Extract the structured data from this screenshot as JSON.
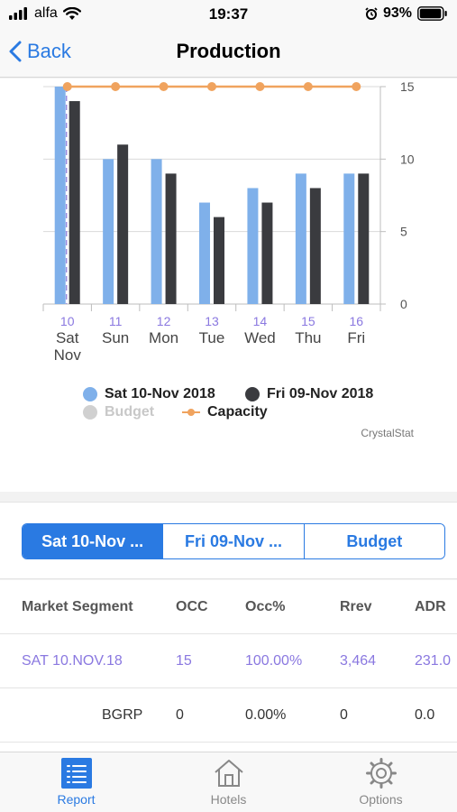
{
  "status": {
    "carrier": "alfa",
    "time": "19:37",
    "battery": "93%"
  },
  "nav": {
    "back_label": "Back",
    "title": "Production"
  },
  "chart_data": {
    "type": "bar",
    "categories": [
      "10",
      "11",
      "12",
      "13",
      "14",
      "15",
      "16"
    ],
    "category_days": [
      "Sat",
      "Sun",
      "Mon",
      "Tue",
      "Wed",
      "Thu",
      "Fri"
    ],
    "category_extra": [
      "Nov",
      "",
      "",
      "",
      "",
      "",
      ""
    ],
    "series": [
      {
        "name": "Sat 10-Nov 2018",
        "values": [
          15,
          10,
          10,
          7,
          8,
          9,
          9
        ],
        "color": "#7fb0ea"
      },
      {
        "name": "Fri 09-Nov 2018",
        "values": [
          14,
          11,
          9,
          6,
          7,
          8,
          9
        ],
        "color": "#3a3b3f"
      }
    ],
    "lines": [
      {
        "name": "Capacity",
        "values": [
          15,
          15,
          15,
          15,
          15,
          15,
          15
        ],
        "color": "#f0a35e"
      }
    ],
    "hidden_series": [
      {
        "name": "Budget",
        "color": "#c8c8c8"
      }
    ],
    "ylim": [
      0,
      15
    ],
    "yticks": [
      0,
      5,
      10,
      15
    ],
    "grid": true,
    "legend_position": "bottom"
  },
  "legend": {
    "s1": "Sat 10-Nov 2018",
    "s2": "Fri 09-Nov 2018",
    "budget": "Budget",
    "capacity": "Capacity"
  },
  "credit": "CrystalStat",
  "segments": [
    "Sat 10-Nov ...",
    "Fri 09-Nov ...",
    "Budget"
  ],
  "table": {
    "headers": [
      "Market Segment",
      "OCC",
      "Occ%",
      "Rrev",
      "ADR"
    ],
    "rows": [
      [
        "SAT 10.NOV.18",
        "15",
        "100.00%",
        "3,464",
        "231.0"
      ],
      [
        "BGRP",
        "0",
        "0.00%",
        "0",
        "0.0"
      ]
    ]
  },
  "tabs": [
    "Report",
    "Hotels",
    "Options"
  ],
  "colors": {
    "accent": "#2a7ae2"
  }
}
